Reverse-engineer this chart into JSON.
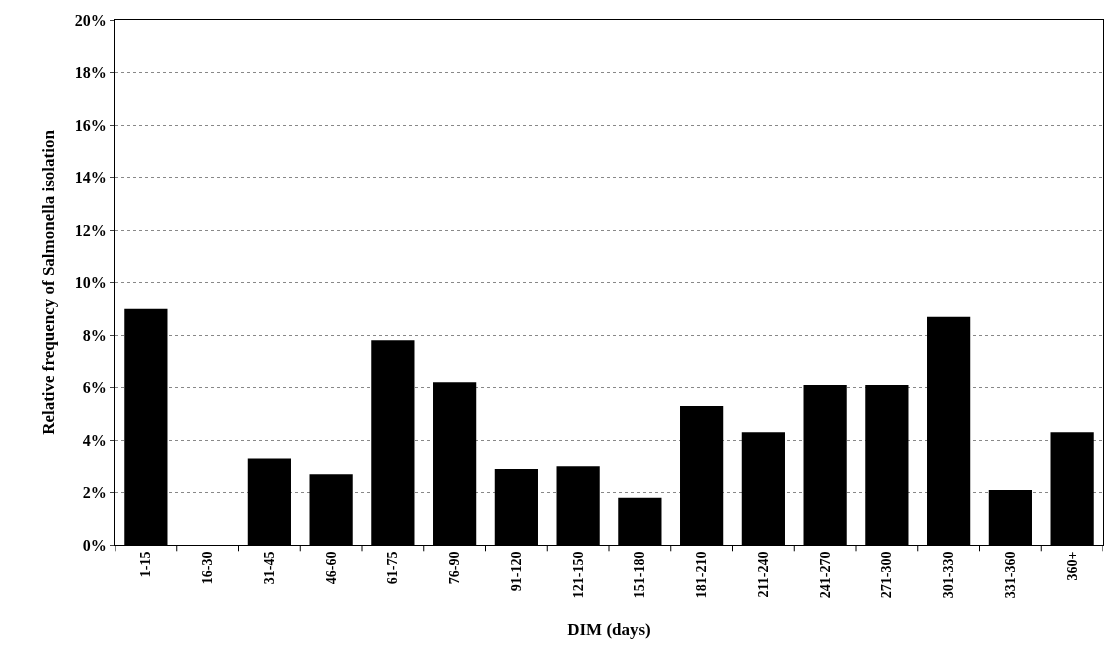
{
  "chart_data": {
    "type": "bar",
    "xlabel": "DIM (days)",
    "ylabel": "Relative frequency of Salmonella isolation",
    "categories": [
      "1-15",
      "16-30",
      "31-45",
      "46-60",
      "61-75",
      "76-90",
      "91-120",
      "121-150",
      "151-180",
      "181-210",
      "211-240",
      "241-270",
      "271-300",
      "301-330",
      "331-360",
      "360+"
    ],
    "values": [
      9.0,
      0,
      3.3,
      2.7,
      7.8,
      6.2,
      2.9,
      3.0,
      1.8,
      5.3,
      4.3,
      6.1,
      6.1,
      8.7,
      2.1,
      4.3
    ],
    "color": "#000000",
    "ylim": [
      0,
      20
    ],
    "yticks": [
      {
        "value": 0,
        "label": "0%"
      },
      {
        "value": 2,
        "label": "2%"
      },
      {
        "value": 4,
        "label": "4%"
      },
      {
        "value": 6,
        "label": "6%"
      },
      {
        "value": 8,
        "label": "8%"
      },
      {
        "value": 10,
        "label": "10%"
      },
      {
        "value": 12,
        "label": "12%"
      },
      {
        "value": 14,
        "label": "14%"
      },
      {
        "value": 16,
        "label": "16%"
      },
      {
        "value": 18,
        "label": "18%"
      },
      {
        "value": 20,
        "label": "20%"
      }
    ],
    "grid": "y"
  }
}
